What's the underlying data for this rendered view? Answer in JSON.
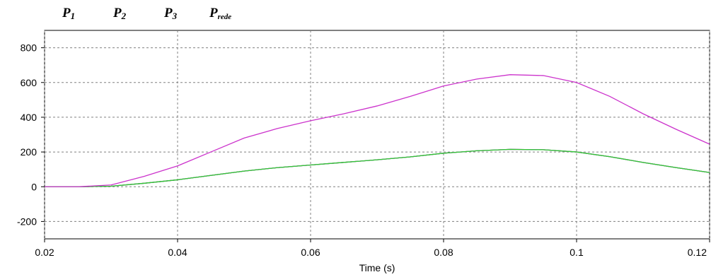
{
  "chart_data": {
    "type": "line",
    "x_label": "Time (s)",
    "x": [
      0.02,
      0.025,
      0.03,
      0.035,
      0.04,
      0.045,
      0.05,
      0.055,
      0.06,
      0.065,
      0.07,
      0.075,
      0.08,
      0.085,
      0.09,
      0.095,
      0.1,
      0.105,
      0.11,
      0.115,
      0.12
    ],
    "series": [
      {
        "name": "P1",
        "color": "#e03030",
        "values": [
          0,
          0,
          3,
          20,
          40,
          65,
          90,
          110,
          125,
          140,
          155,
          172,
          193,
          207,
          215,
          213,
          200,
          173,
          140,
          110,
          82
        ]
      },
      {
        "name": "P2",
        "color": "#4040d0",
        "values": [
          0,
          0,
          3,
          20,
          40,
          65,
          90,
          110,
          125,
          140,
          155,
          172,
          193,
          207,
          215,
          213,
          200,
          173,
          140,
          110,
          82
        ]
      },
      {
        "name": "P3",
        "color": "#33cc33",
        "values": [
          0,
          0,
          3,
          20,
          40,
          65,
          90,
          110,
          125,
          140,
          155,
          172,
          193,
          207,
          215,
          213,
          200,
          173,
          140,
          110,
          82
        ]
      },
      {
        "name": "Prede",
        "color": "#cc33cc",
        "values": [
          0,
          0,
          10,
          60,
          120,
          200,
          280,
          335,
          380,
          420,
          465,
          520,
          580,
          620,
          645,
          640,
          600,
          520,
          420,
          330,
          245
        ]
      }
    ],
    "xlim": [
      0.02,
      0.12
    ],
    "xticks": [
      0.02,
      0.04,
      0.06,
      0.08,
      0.1,
      0.12
    ],
    "ylim": [
      -300,
      900
    ],
    "yticks": [
      -200,
      0,
      200,
      400,
      600,
      800
    ],
    "grid": true
  }
}
